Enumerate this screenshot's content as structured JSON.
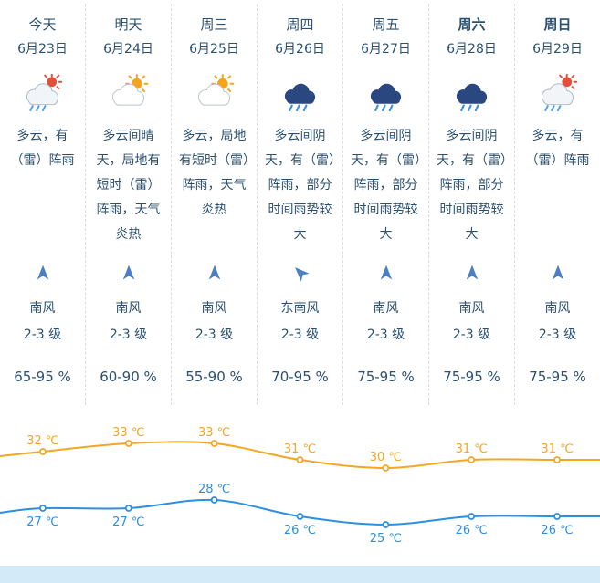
{
  "page": {
    "background": "#ffffff",
    "text_color": "#2c5170",
    "footer_color": "#d3eaf8"
  },
  "days": [
    {
      "name": "今天",
      "date": "6月23日",
      "emphasis": false,
      "icon": "cloud-sun-rain",
      "desc": "多云，有（雷）阵雨",
      "wind_dir": "南风",
      "wind_level": "2-3 级",
      "wind_rotation": 0,
      "humidity": "65-95 %"
    },
    {
      "name": "明天",
      "date": "6月24日",
      "emphasis": false,
      "icon": "cloud-sun",
      "desc": "多云间晴天，局地有短时（雷）阵雨，天气炎热",
      "wind_dir": "南风",
      "wind_level": "2-3 级",
      "wind_rotation": 0,
      "humidity": "60-90 %"
    },
    {
      "name": "周三",
      "date": "6月25日",
      "emphasis": false,
      "icon": "cloud-sun",
      "desc": "多云，局地有短时（雷）阵雨，天气炎热",
      "wind_dir": "南风",
      "wind_level": "2-3 级",
      "wind_rotation": 0,
      "humidity": "55-90 %"
    },
    {
      "name": "周四",
      "date": "6月26日",
      "emphasis": false,
      "icon": "dark-cloud-rain",
      "desc": "多云间阴天，有（雷）阵雨，部分时间雨势较大",
      "wind_dir": "东南风",
      "wind_level": "2-3 级",
      "wind_rotation": -45,
      "humidity": "70-95 %"
    },
    {
      "name": "周五",
      "date": "6月27日",
      "emphasis": false,
      "icon": "dark-cloud-rain",
      "desc": "多云间阴天，有（雷）阵雨，部分时间雨势较大",
      "wind_dir": "南风",
      "wind_level": "2-3 级",
      "wind_rotation": 0,
      "humidity": "75-95 %"
    },
    {
      "name": "周六",
      "date": "6月28日",
      "emphasis": true,
      "icon": "dark-cloud-rain",
      "desc": "多云间阴天，有（雷）阵雨，部分时间雨势较大",
      "wind_dir": "南风",
      "wind_level": "2-3 级",
      "wind_rotation": 0,
      "humidity": "75-95 %"
    },
    {
      "name": "周日",
      "date": "6月29日",
      "emphasis": true,
      "icon": "cloud-sun-rain",
      "desc": "多云，有（雷）阵雨",
      "wind_dir": "南风",
      "wind_level": "2-3 级",
      "wind_rotation": 0,
      "humidity": "75-95 %"
    }
  ],
  "chart_data": {
    "type": "line",
    "categories": [
      "今天",
      "明天",
      "周三",
      "周四",
      "周五",
      "周六",
      "周日"
    ],
    "unit": "℃",
    "grid": false,
    "legend": "none",
    "series": [
      {
        "name": "high",
        "color": "#f5a623",
        "values": [
          32,
          33,
          33,
          31,
          30,
          31,
          31
        ],
        "label_positions": [
          "above",
          "above",
          "above",
          "above",
          "above",
          "above",
          "above"
        ]
      },
      {
        "name": "low",
        "color": "#2d8fe0",
        "values": [
          27,
          27,
          28,
          26,
          25,
          26,
          26
        ],
        "label_positions": [
          "below",
          "below",
          "above",
          "below",
          "below",
          "below",
          "below"
        ]
      }
    ]
  }
}
